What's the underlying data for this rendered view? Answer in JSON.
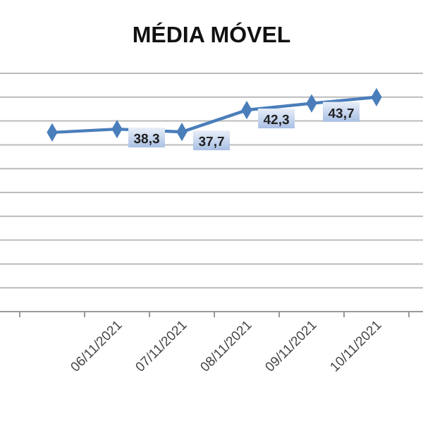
{
  "chart_data": {
    "type": "line",
    "title": "MÉDIA MÓVEL",
    "categories": [
      null,
      "06/11/2021",
      "07/11/2021",
      "08/11/2021",
      "09/11/2021",
      "10/11/2021"
    ],
    "series": [
      {
        "color": "#4a7ebb",
        "values": [
          37.6,
          38.3,
          37.7,
          42.3,
          43.7,
          45.0
        ],
        "value_labels": [
          null,
          "38,3",
          "37,7",
          "42,3",
          "43,7",
          null
        ]
      }
    ],
    "ylim": [
      0,
      50
    ],
    "yticks": [
      {
        "value": 0,
        "label": null
      },
      {
        "value": 5,
        "label": null
      },
      {
        "value": 10,
        "label": null
      },
      {
        "value": 15,
        "label": null
      },
      {
        "value": 20,
        "label": null
      },
      {
        "value": 25,
        "label": null
      },
      {
        "value": 30,
        "label": null
      },
      {
        "value": 35,
        "label": null
      },
      {
        "value": 40,
        "label": null
      },
      {
        "value": 45,
        "label": null
      },
      {
        "value": 50,
        "label": null
      }
    ],
    "grid": "y",
    "tick_labels": "x",
    "marker": "diamond",
    "line_style": "solid"
  }
}
